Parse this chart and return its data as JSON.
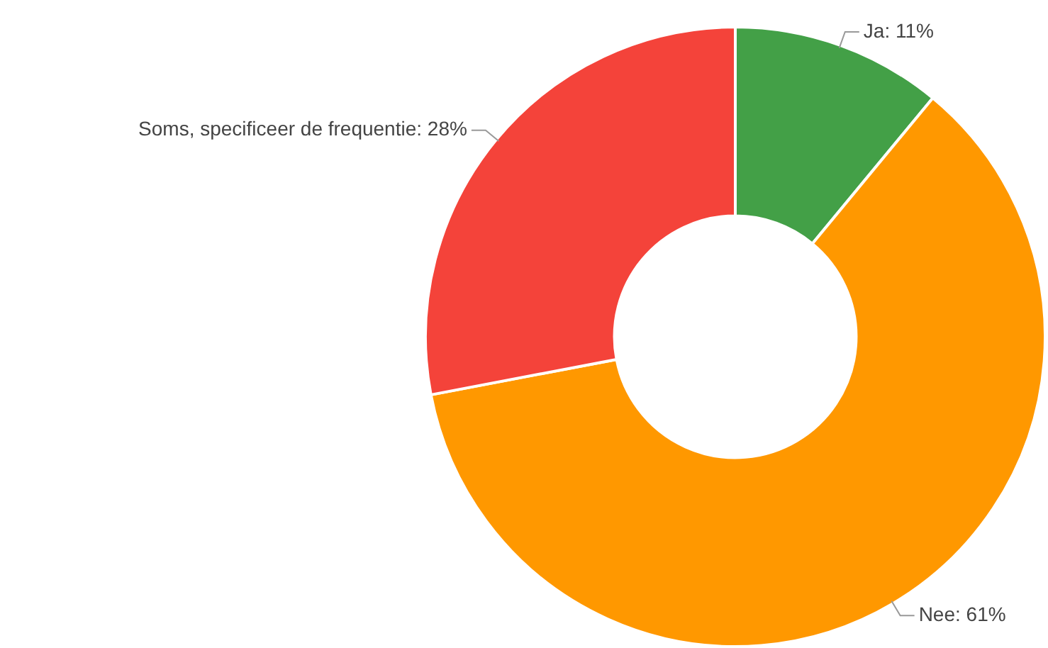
{
  "chart_data": {
    "type": "donut",
    "categories": [
      "Ja",
      "Nee",
      "Soms, specificeer de frequentie"
    ],
    "values": [
      11,
      61,
      28
    ],
    "value_labels": [
      "11%",
      "61%",
      "28%"
    ],
    "colors": [
      "#43a047",
      "#ff9800",
      "#f4433a"
    ],
    "legend": false
  }
}
